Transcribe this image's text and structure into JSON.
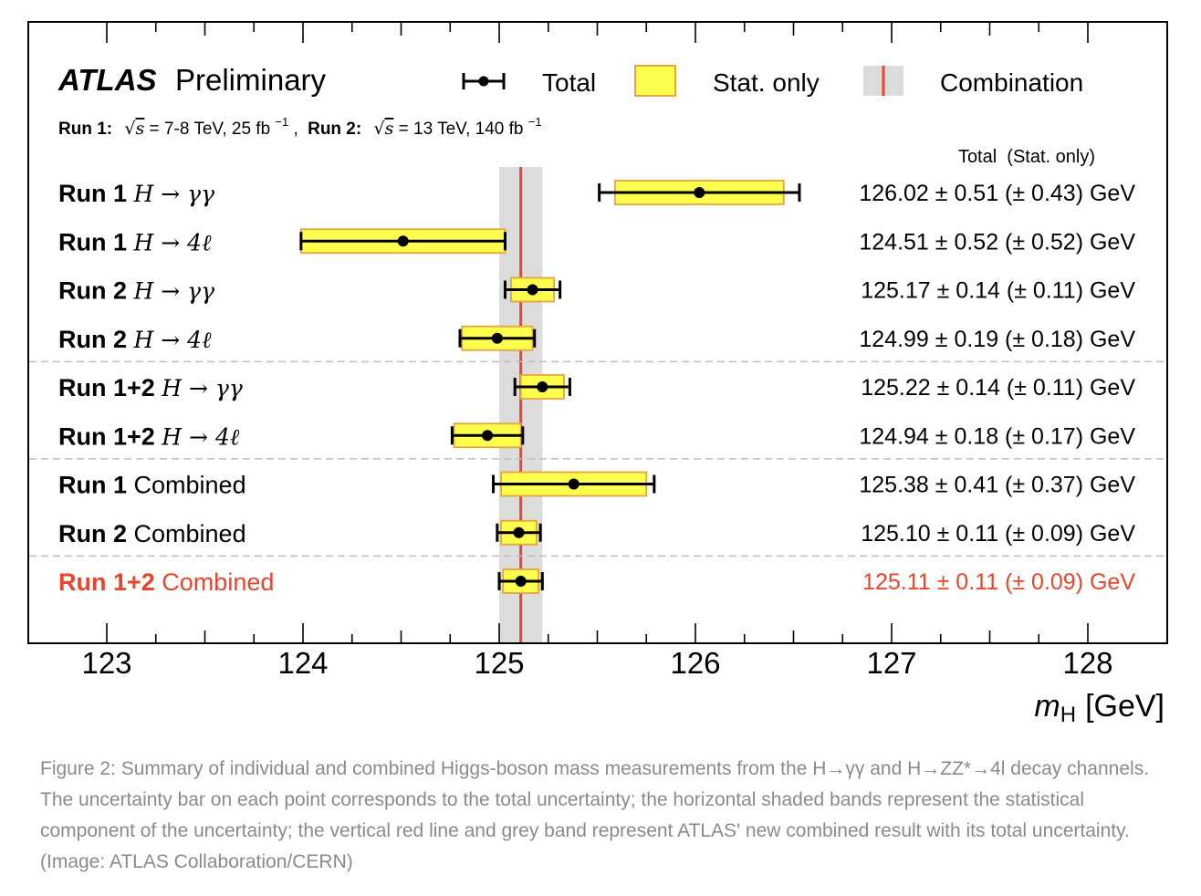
{
  "chart_data": {
    "type": "scatter",
    "experiment": "ATLAS",
    "status": "Preliminary",
    "run_info": {
      "run1_label": "Run 1:",
      "run1_text": " = 7-8 TeV, 25 fb",
      "run1_sup": "−1",
      "sep": ",",
      "run2_label": "Run 2:",
      "run2_text": " = 13 TeV, 140 fb",
      "run2_sup": "−1",
      "sqrt_s": "s"
    },
    "legend": {
      "total": "Total",
      "stat": "Stat. only",
      "combination": "Combination",
      "placement": "top"
    },
    "column_header": "Total  (Stat. only)",
    "xlabel": "m",
    "xlabel_sub": "H",
    "xunit": "[GeV]",
    "xlim": [
      122.6,
      128.4
    ],
    "xticks": [
      "123",
      "124",
      "125",
      "126",
      "127",
      "128"
    ],
    "combination": {
      "center": 125.11,
      "total": 0.11
    },
    "rows": [
      {
        "run": "Run 1",
        "channel": "H → γγ",
        "value": 126.02,
        "total": 0.51,
        "stat": 0.43,
        "text": "126.02 ± 0.51 (± 0.43) GeV",
        "highlight": false
      },
      {
        "run": "Run 1",
        "channel": "H → 4ℓ",
        "value": 124.51,
        "total": 0.52,
        "stat": 0.52,
        "text": "124.51 ± 0.52 (± 0.52) GeV",
        "highlight": false
      },
      {
        "run": "Run 2",
        "channel": "H → γγ",
        "value": 125.17,
        "total": 0.14,
        "stat": 0.11,
        "text": "125.17 ± 0.14 (± 0.11) GeV",
        "highlight": false
      },
      {
        "run": "Run 2",
        "channel": "H → 4ℓ",
        "value": 124.99,
        "total": 0.19,
        "stat": 0.18,
        "text": "124.99 ± 0.19 (± 0.18) GeV",
        "highlight": false
      },
      {
        "run": "Run 1+2",
        "channel": "H → γγ",
        "value": 125.22,
        "total": 0.14,
        "stat": 0.11,
        "text": "125.22 ± 0.14 (± 0.11) GeV",
        "highlight": false
      },
      {
        "run": "Run 1+2",
        "channel": "H → 4ℓ",
        "value": 124.94,
        "total": 0.18,
        "stat": 0.17,
        "text": "124.94 ± 0.18 (± 0.17) GeV",
        "highlight": false
      },
      {
        "run": "Run 1",
        "label": "Combined",
        "value": 125.38,
        "total": 0.41,
        "stat": 0.37,
        "text": "125.38 ± 0.41 (± 0.37) GeV",
        "highlight": false
      },
      {
        "run": "Run 2",
        "label": "Combined",
        "value": 125.1,
        "total": 0.11,
        "stat": 0.09,
        "text": "125.10 ± 0.11 (± 0.09) GeV",
        "highlight": false
      },
      {
        "run": "Run 1+2",
        "label": "Combined",
        "value": 125.11,
        "total": 0.11,
        "stat": 0.09,
        "text": "125.11 ± 0.11 (± 0.09) GeV",
        "highlight": true
      }
    ],
    "colors": {
      "stat_fill": "#ffff4d",
      "stat_edge": "#e8a33a",
      "combination_line": "#e8452c",
      "combination_band": "#dcdcdc",
      "highlight_text": "#e8452c",
      "separator": "#bdbdbd"
    }
  },
  "caption": "Figure 2: Summary of individual and combined Higgs-boson mass measurements from the H→γγ and H→ZZ*→4l decay channels. The uncertainty bar on each point corresponds to the total uncertainty; the horizontal shaded bands represent the statistical component of the uncertainty; the vertical red line and grey band represent ATLAS' new combined result with its total uncertainty. (Image: ATLAS Collaboration/CERN)"
}
